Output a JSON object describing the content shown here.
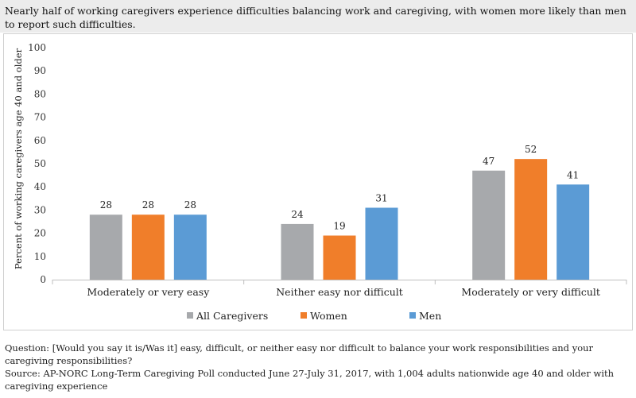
{
  "header": {
    "title": "Nearly half of working caregivers experience difficulties balancing work and caregiving, with women more likely than men to report such difficulties."
  },
  "footer": {
    "question": "Question: [Would you say it is/Was it] easy, difficult, or neither easy nor difficult to balance your work responsibilities and your caregiving responsibilities?",
    "source": "Source: AP-NORC Long-Term Caregiving Poll conducted June 27-July 31, 2017, with 1,004 adults nationwide age 40 and older with caregiving experience"
  },
  "chart_data": {
    "type": "bar",
    "title": "",
    "xlabel": "",
    "ylabel": "Percent of working caregivers age 40 and older",
    "ylim": [
      0,
      100
    ],
    "yticks": [
      0,
      10,
      20,
      30,
      40,
      50,
      60,
      70,
      80,
      90,
      100
    ],
    "grid": false,
    "legend_position": "bottom",
    "categories": [
      "Moderately or very easy",
      "Neither easy nor difficult",
      "Moderately or very difficult"
    ],
    "series": [
      {
        "name": "All Caregivers",
        "color": "#a7a9ac",
        "values": [
          28,
          24,
          47
        ]
      },
      {
        "name": "Women",
        "color": "#f07e2a",
        "values": [
          28,
          19,
          52
        ]
      },
      {
        "name": "Men",
        "color": "#5b9bd5",
        "values": [
          28,
          31,
          41
        ]
      }
    ]
  }
}
